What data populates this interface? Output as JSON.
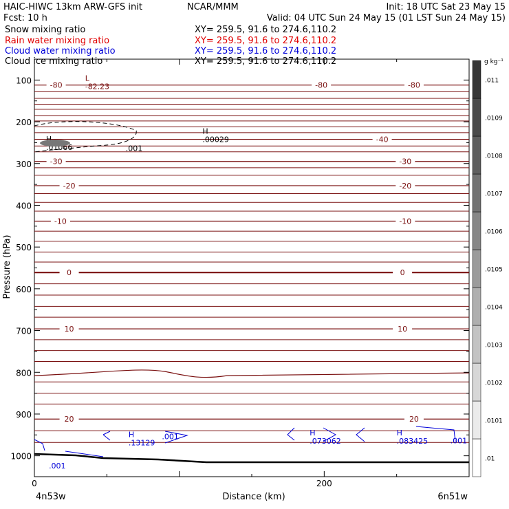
{
  "header": {
    "model": "HAIC-HIWC 13km ARW-GFS init",
    "org": "NCAR/MMM",
    "init": "Init: 18 UTC Sat 23 May 15",
    "fcst_label": "Fcst:",
    "fcst_value": "10 h",
    "valid": "Valid: 04 UTC Sun 24 May 15 (01 LST Sun 24 May 15)"
  },
  "fields": [
    {
      "name": "Snow mixing ratio",
      "xy": "XY= 259.5, 91.6 to 274.6,110.2",
      "color": "#000000"
    },
    {
      "name": "Rain water mixing ratio",
      "xy": "XY= 259.5, 91.6 to 274.6,110.2",
      "color": "#e00000"
    },
    {
      "name": "Cloud water mixing ratio",
      "xy": "XY= 259.5, 91.6 to 274.6,110.2",
      "color": "#0000d8"
    },
    {
      "name": "Cloud ice mixing ratio",
      "xy": "XY= 259.5, 91.6 to 274.6,110.2",
      "color": "#000000"
    }
  ],
  "colors": {
    "temperature": "#7a1010",
    "cloud_water": "#0000d8",
    "frame": "#000000",
    "terrain": "#000000"
  },
  "chart_data": {
    "type": "contour",
    "xlabel": "Distance (km)",
    "ylabel": "Pressure (hPa)",
    "x_start_label": "4n53w",
    "x_end_label": "6n51w",
    "xlim": [
      0,
      300
    ],
    "ylim": [
      1050,
      50
    ],
    "x_ticks": [
      0,
      200
    ],
    "y_ticks": [
      100,
      200,
      300,
      400,
      500,
      600,
      700,
      800,
      900,
      1000
    ],
    "temperature_contours": [
      {
        "label": "-80",
        "p": 112,
        "marks": [
          {
            "x": 15,
            "text": "-80"
          },
          {
            "x": 198,
            "text": "-80"
          },
          {
            "x": 262,
            "text": "-80"
          }
        ]
      },
      {
        "label": "-40",
        "p": 242,
        "marks": [
          {
            "x": 240,
            "text": "-40"
          }
        ]
      },
      {
        "label": "-30",
        "p": 295,
        "marks": [
          {
            "x": 15,
            "text": "-30"
          },
          {
            "x": 256,
            "text": "-30"
          }
        ]
      },
      {
        "label": "-20",
        "p": 353,
        "marks": [
          {
            "x": 24,
            "text": "-20"
          },
          {
            "x": 256,
            "text": "-20"
          }
        ]
      },
      {
        "label": "-10",
        "p": 438,
        "marks": [
          {
            "x": 18,
            "text": "-10"
          },
          {
            "x": 256,
            "text": "-10"
          }
        ]
      },
      {
        "label": "0",
        "p": 561,
        "marks": [
          {
            "x": 24,
            "text": "0"
          },
          {
            "x": 254,
            "text": "0"
          }
        ]
      },
      {
        "label": "10",
        "p": 696,
        "marks": [
          {
            "x": 24,
            "text": "10"
          },
          {
            "x": 254,
            "text": "10"
          }
        ]
      },
      {
        "label": "20",
        "p": 912,
        "marks": [
          {
            "x": 24,
            "text": "20"
          },
          {
            "x": 262,
            "text": "20"
          }
        ]
      }
    ],
    "extrema_labels": [
      {
        "type": "L",
        "value": "-82.23",
        "x": 35,
        "p": 118
      },
      {
        "type": "H",
        "value": ".00029",
        "x": 116,
        "p": 245
      },
      {
        "type": "H",
        "value": ".01066",
        "x": 8,
        "p": 264
      },
      {
        "type": "H",
        "value": ".13129",
        "x": 65,
        "p": 972
      },
      {
        "type": "H",
        "value": ".073062",
        "x": 190,
        "p": 968
      },
      {
        "type": "H",
        "value": ".083425",
        "x": 250,
        "p": 968
      }
    ],
    "cloud_water_labels": [
      {
        "value": ".001",
        "x": 88,
        "p": 960
      },
      {
        "value": ".001",
        "x": 10,
        "p": 1030
      },
      {
        "value": ".001",
        "x": 287,
        "p": 970
      }
    ],
    "cloud_ice_labels": [
      {
        "value": ".001",
        "x": 63,
        "p": 270
      }
    ],
    "colorbar": {
      "unit": "g kg⁻¹",
      "labels": [
        ".01",
        ".0101",
        ".0102",
        ".0103",
        ".0104",
        ".0105",
        ".0106",
        ".0107",
        ".0108",
        ".0109",
        ".011"
      ]
    }
  }
}
